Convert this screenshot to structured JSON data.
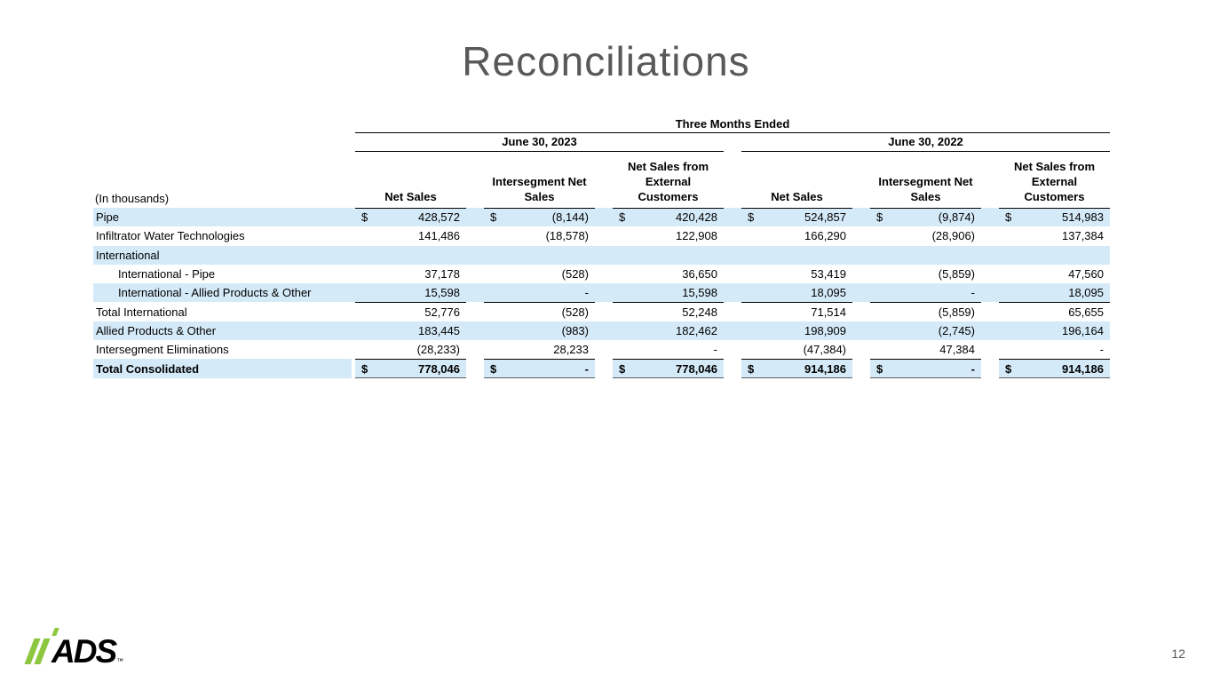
{
  "slide": {
    "title": "Reconciliations",
    "page_number": "12"
  },
  "logo": {
    "text": "ADS",
    "tm": "™",
    "green": "#8DC63F"
  },
  "colors": {
    "row_highlight": "#D5EAF8",
    "title_gray": "#595959",
    "total_double_underline_gray": "#808080",
    "text": "#000000"
  },
  "table": {
    "caption": "Three Months Ended",
    "periods": [
      "June 30, 2023",
      "June 30, 2022"
    ],
    "in_thousands_label": "(In thousands)",
    "column_headers": [
      [
        "Net Sales"
      ],
      [
        "Intersegment Net",
        "Sales"
      ],
      [
        "Net Sales from",
        "External",
        "Customers"
      ]
    ],
    "rows": [
      {
        "label": "Pipe",
        "shaded": true,
        "dollar": true,
        "values": [
          "428,572",
          "(8,144)",
          "420,428",
          "524,857",
          "(9,874)",
          "514,983"
        ]
      },
      {
        "label": "Infiltrator Water Technologies",
        "values": [
          "141,486",
          "(18,578)",
          "122,908",
          "166,290",
          "(28,906)",
          "137,384"
        ]
      },
      {
        "label": "International",
        "shaded": true,
        "values": [
          "",
          "",
          "",
          "",
          "",
          ""
        ]
      },
      {
        "label": "International - Pipe",
        "indent": true,
        "values": [
          "37,178",
          "(528)",
          "36,650",
          "53,419",
          "(5,859)",
          "47,560"
        ]
      },
      {
        "label": "International - Allied Products & Other",
        "indent": true,
        "shaded": true,
        "underline": true,
        "values": [
          "15,598",
          "-",
          "15,598",
          "18,095",
          "-",
          "18,095"
        ]
      },
      {
        "label": "Total International",
        "values": [
          "52,776",
          "(528)",
          "52,248",
          "71,514",
          "(5,859)",
          "65,655"
        ]
      },
      {
        "label": "Allied Products & Other",
        "shaded": true,
        "values": [
          "183,445",
          "(983)",
          "182,462",
          "198,909",
          "(2,745)",
          "196,164"
        ]
      },
      {
        "label": "Intersegment Eliminations",
        "underline": true,
        "values": [
          "(28,233)",
          "28,233",
          "-",
          "(47,384)",
          "47,384",
          "-"
        ]
      },
      {
        "label": "Total Consolidated",
        "shaded": true,
        "bold": true,
        "dollar": true,
        "total": true,
        "values": [
          "778,046",
          "-",
          "778,046",
          "914,186",
          "-",
          "914,186"
        ]
      }
    ]
  }
}
